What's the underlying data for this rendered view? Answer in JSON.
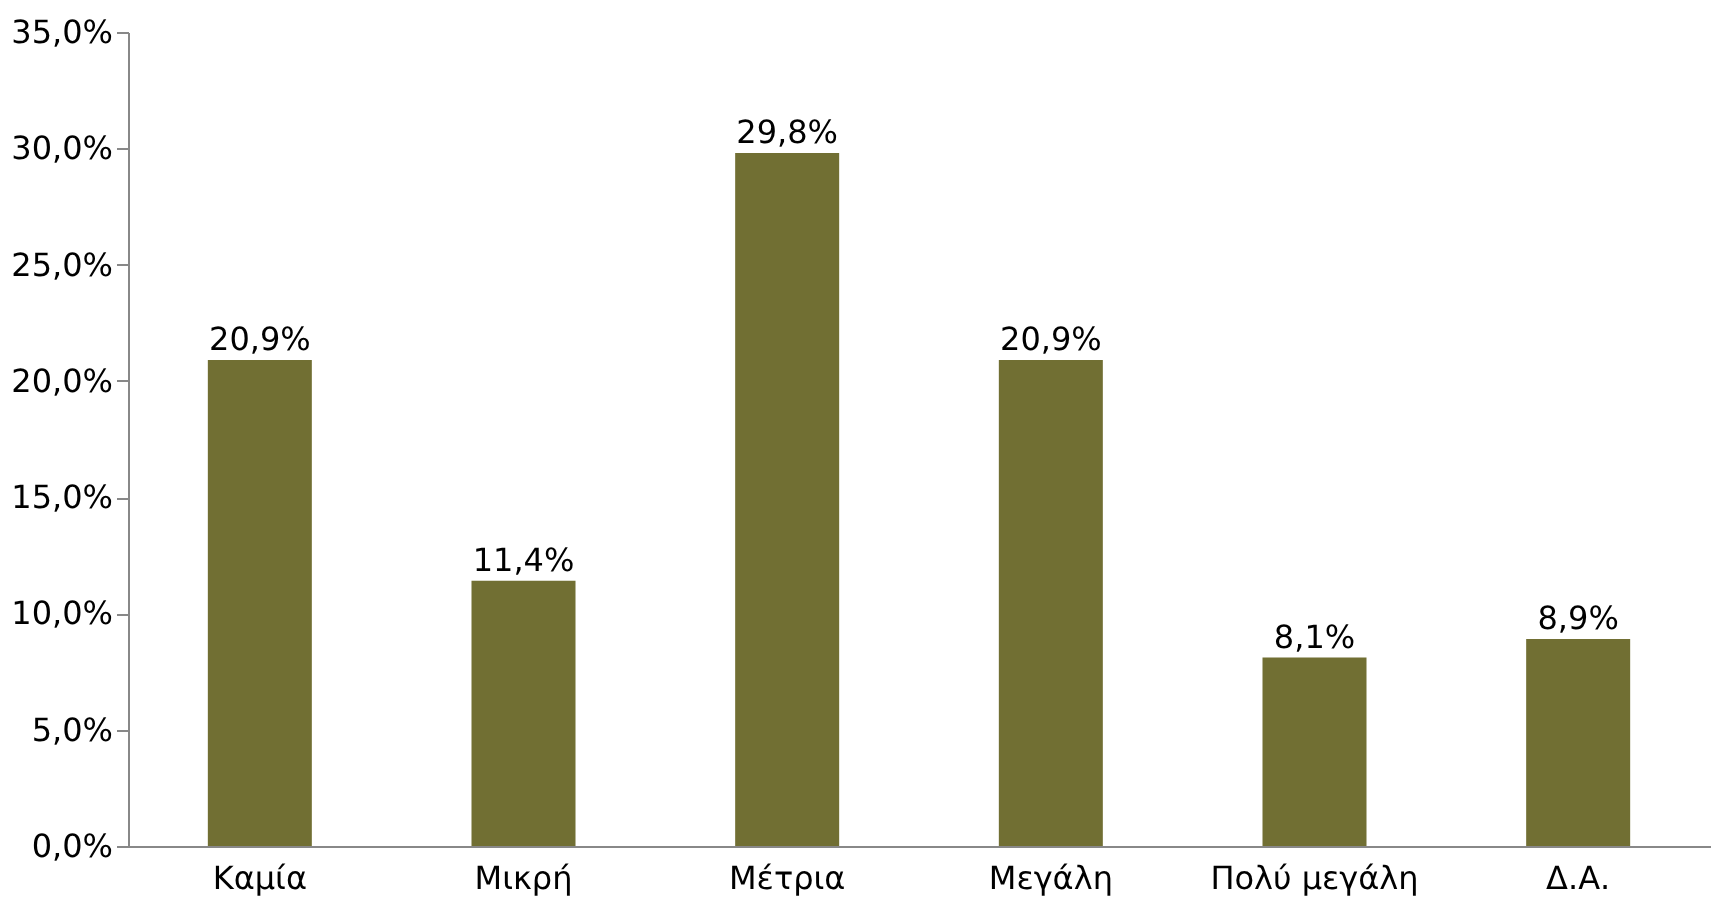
{
  "chart_data": {
    "type": "bar",
    "categories": [
      "Καμία",
      "Μικρή",
      "Μέτρια",
      "Μεγάλη",
      "Πολύ μεγάλη",
      "Δ.Α."
    ],
    "values": [
      20.9,
      11.4,
      29.8,
      20.9,
      8.1,
      8.9
    ],
    "value_labels": [
      "20,9%",
      "11,4%",
      "29,8%",
      "20,9%",
      "8,1%",
      "8,9%"
    ],
    "color": "#716f33",
    "ylim": [
      0,
      35
    ],
    "yticks": [
      {
        "value": 0,
        "label": "0,0%"
      },
      {
        "value": 5,
        "label": "5,0%"
      },
      {
        "value": 10,
        "label": "10,0%"
      },
      {
        "value": 15,
        "label": "15,0%"
      },
      {
        "value": 20,
        "label": "20,0%"
      },
      {
        "value": 25,
        "label": "25,0%"
      },
      {
        "value": 30,
        "label": "30,0%"
      },
      {
        "value": 35,
        "label": "35,0%"
      }
    ],
    "grid": false
  }
}
